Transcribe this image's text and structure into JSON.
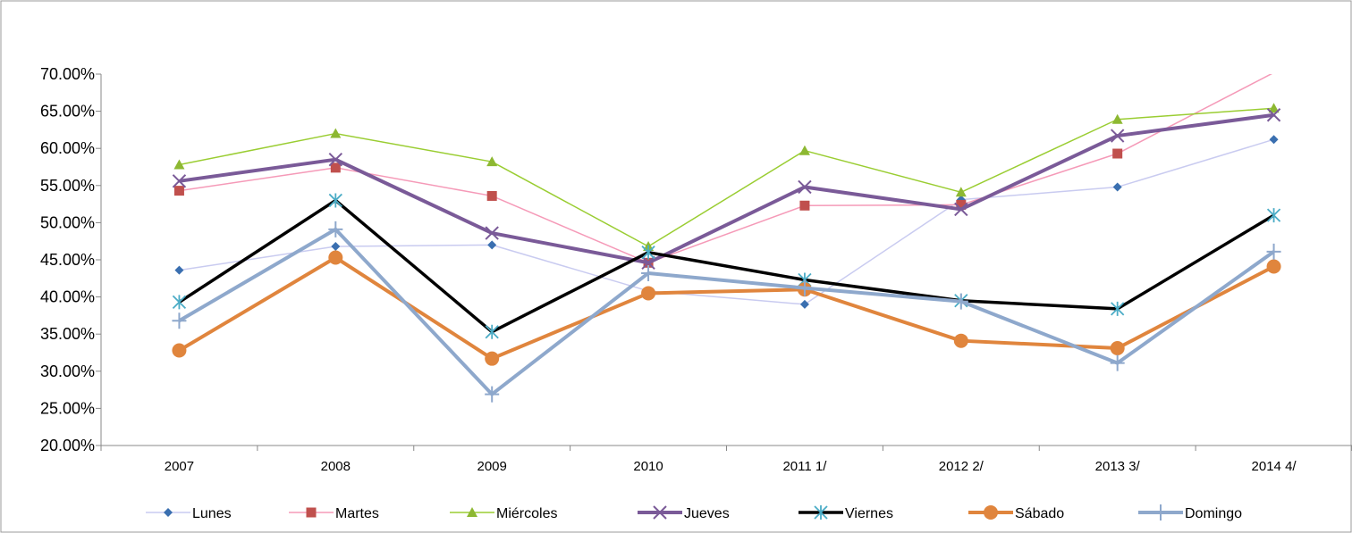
{
  "chart_data": {
    "type": "line",
    "categories": [
      "2007",
      "2008",
      "2009",
      "2010",
      "2011 1/",
      "2012 2/",
      "2013 3/",
      "2014 4/"
    ],
    "ylim": [
      0.2,
      0.7
    ],
    "y_ticks": [
      "20.00%",
      "25.00%",
      "30.00%",
      "35.00%",
      "40.00%",
      "45.00%",
      "50.00%",
      "55.00%",
      "60.00%",
      "65.00%",
      "70.00%"
    ],
    "legend_position": "bottom",
    "grid": false,
    "series": [
      {
        "name": "Lunes",
        "color": "#c9cbf0",
        "marker_color": "#3a6fb0",
        "marker": "diamond",
        "width": 1.5,
        "values": [
          0.436,
          0.468,
          0.47,
          0.408,
          0.39,
          0.531,
          0.548,
          0.612
        ]
      },
      {
        "name": "Martes",
        "color": "#f59ab8",
        "marker_color": "#c0504d",
        "marker": "square",
        "width": 1.5,
        "values": [
          0.543,
          0.574,
          0.536,
          0.446,
          0.523,
          0.524,
          0.593,
          0.702
        ]
      },
      {
        "name": "Miércoles",
        "color": "#9acd32",
        "marker_color": "#8db832",
        "marker": "triangle",
        "width": 1.5,
        "values": [
          0.578,
          0.62,
          0.582,
          0.468,
          0.597,
          0.541,
          0.639,
          0.654
        ]
      },
      {
        "name": "Jueves",
        "color": "#7a5a98",
        "marker_color": "#7a5a98",
        "marker": "x",
        "width": 4,
        "values": [
          0.556,
          0.585,
          0.486,
          0.446,
          0.548,
          0.518,
          0.617,
          0.645
        ]
      },
      {
        "name": "Viernes",
        "color": "#000000",
        "marker_color": "#4bacc6",
        "marker": "star",
        "width": 3.5,
        "values": [
          0.393,
          0.53,
          0.353,
          0.46,
          0.423,
          0.395,
          0.384,
          0.51
        ]
      },
      {
        "name": "Sábado",
        "color": "#e0853d",
        "marker_color": "#e0853d",
        "marker": "circle",
        "width": 4,
        "values": [
          0.328,
          0.453,
          0.317,
          0.405,
          0.41,
          0.341,
          0.331,
          0.441
        ]
      },
      {
        "name": "Domingo",
        "color": "#8ea8cc",
        "marker_color": "#8ea8cc",
        "marker": "plus",
        "width": 4,
        "values": [
          0.368,
          0.491,
          0.269,
          0.432,
          0.412,
          0.394,
          0.311,
          0.461
        ]
      }
    ]
  }
}
